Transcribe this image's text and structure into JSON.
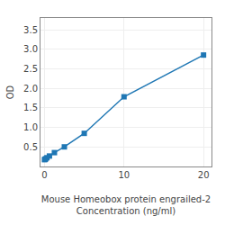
{
  "chart_data": {
    "type": "line",
    "x": [
      0,
      0.078,
      0.156,
      0.313,
      0.625,
      1.25,
      2.5,
      5,
      10,
      20
    ],
    "values": [
      0.176,
      0.182,
      0.199,
      0.224,
      0.268,
      0.355,
      0.502,
      0.848,
      1.784,
      2.852
    ],
    "marker": "square",
    "xlabel": "Mouse Homeobox protein engrailed-2\nConcentration (ng/ml)",
    "ylabel": "OD",
    "xlim": [
      -0.5,
      21
    ],
    "ylim": [
      0.0,
      3.8
    ],
    "xticks": [
      0,
      10,
      20
    ],
    "yticks": [
      0.5,
      {
        "value": 1.0,
        "label": "1.0"
      },
      1.5,
      {
        "value": 2.0,
        "label": "2.0"
      },
      2.5,
      {
        "value": 3.0,
        "label": "3.0"
      },
      3.5
    ],
    "grid": true
  }
}
